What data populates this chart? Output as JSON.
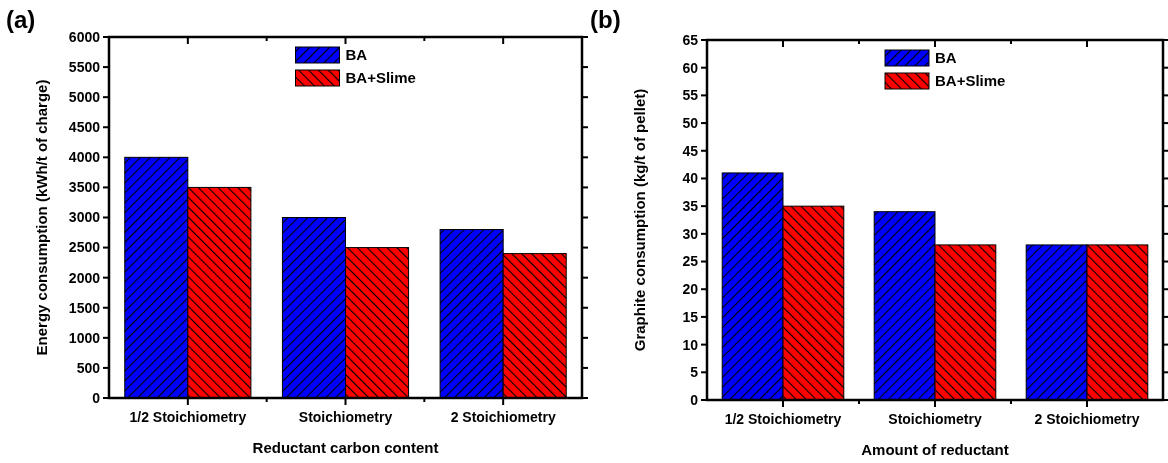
{
  "chart_data": [
    {
      "type": "bar",
      "title": "(a)",
      "xlabel": "Reductant carbon content",
      "ylabel": "Energy consumption (kWh/t of charge)",
      "categories": [
        "1/2 Stoichiometry",
        "Stoichiometry",
        "2 Stoichiometry"
      ],
      "series": [
        {
          "name": "BA",
          "color": "#0000ff",
          "values": [
            4000,
            3000,
            2800
          ]
        },
        {
          "name": "BA+Slime",
          "color": "#ff0000",
          "values": [
            3500,
            2500,
            2400
          ]
        }
      ],
      "ylim": [
        0,
        6000
      ],
      "yticks": [
        0,
        500,
        1000,
        1500,
        2000,
        2500,
        3000,
        3500,
        4000,
        4500,
        5000,
        5500,
        6000
      ],
      "legend": "top",
      "grid": false
    },
    {
      "type": "bar",
      "title": "(b)",
      "xlabel": "Amount of reductant",
      "ylabel": "Graphite consumption (kg/t of pellet)",
      "categories": [
        "1/2 Stoichiometry",
        "Stoichiometry",
        "2 Stoichiometry"
      ],
      "series": [
        {
          "name": "BA",
          "color": "#0000ff",
          "values": [
            41,
            34,
            28
          ]
        },
        {
          "name": "BA+Slime",
          "color": "#ff0000",
          "values": [
            35,
            28,
            28
          ]
        }
      ],
      "ylim": [
        0,
        65
      ],
      "yticks": [
        0,
        5,
        10,
        15,
        20,
        25,
        30,
        35,
        40,
        45,
        50,
        55,
        60,
        65
      ],
      "legend": "top",
      "grid": false
    }
  ]
}
